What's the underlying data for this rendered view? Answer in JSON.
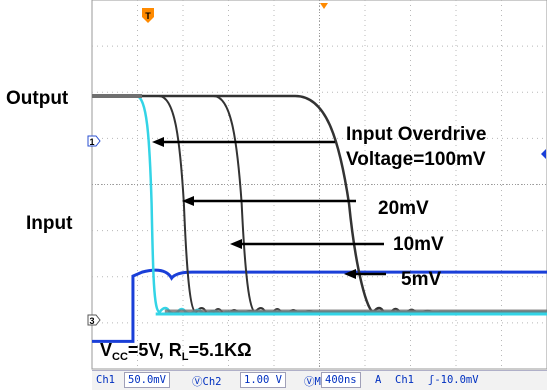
{
  "chart_data": {
    "type": "line",
    "title": "",
    "xlabel": "",
    "ylabel": "",
    "side_labels": {
      "output": "Output",
      "input": "Input"
    },
    "annotations": {
      "header": [
        "Input Overdrive",
        "Voltage=100mV"
      ],
      "overdrives": [
        "20mV",
        "10mV",
        "5mV"
      ],
      "conditions": {
        "vcc": "V",
        "vcc_sub": "CC",
        "vcc_val": "=5V, R",
        "rl_sub": "L",
        "rl_val": "=5.1KΩ"
      }
    },
    "markers": {
      "ch1": "1",
      "ch3": "3",
      "trigger": "T"
    },
    "status": {
      "ch1": "Ch1",
      "ch1_scale": "50.0mV",
      "ch2_prefix": "Ch2",
      "ch2_scale": "1.00 V",
      "time_prefix": "M",
      "timebase": "400ns",
      "acq": "A",
      "trig_src": "Ch1",
      "trig_level": "-10.0mV"
    },
    "grid": true,
    "divisions": {
      "x": 10,
      "y": 8
    },
    "series": [
      {
        "color": "#1a3fd8",
        "role": "input-step",
        "time_div": [
          -10,
          0.9,
          1.0,
          10
        ],
        "level_div": [
          0.6,
          0.6,
          2.1,
          2.1
        ]
      },
      {
        "color": "#33d4e6",
        "role": "output-100mV",
        "fall_start_div": 1.1,
        "fall_end_div": 1.4
      },
      {
        "color": "#333333",
        "role": "output-20mV",
        "fall_start_div": 1.6,
        "fall_end_div": 2.2
      },
      {
        "color": "#333333",
        "role": "output-10mV",
        "fall_start_div": 2.8,
        "fall_end_div": 3.5
      },
      {
        "color": "#333333",
        "role": "output-5mV",
        "fall_start_div": 4.6,
        "fall_end_div": 6.1
      }
    ]
  }
}
